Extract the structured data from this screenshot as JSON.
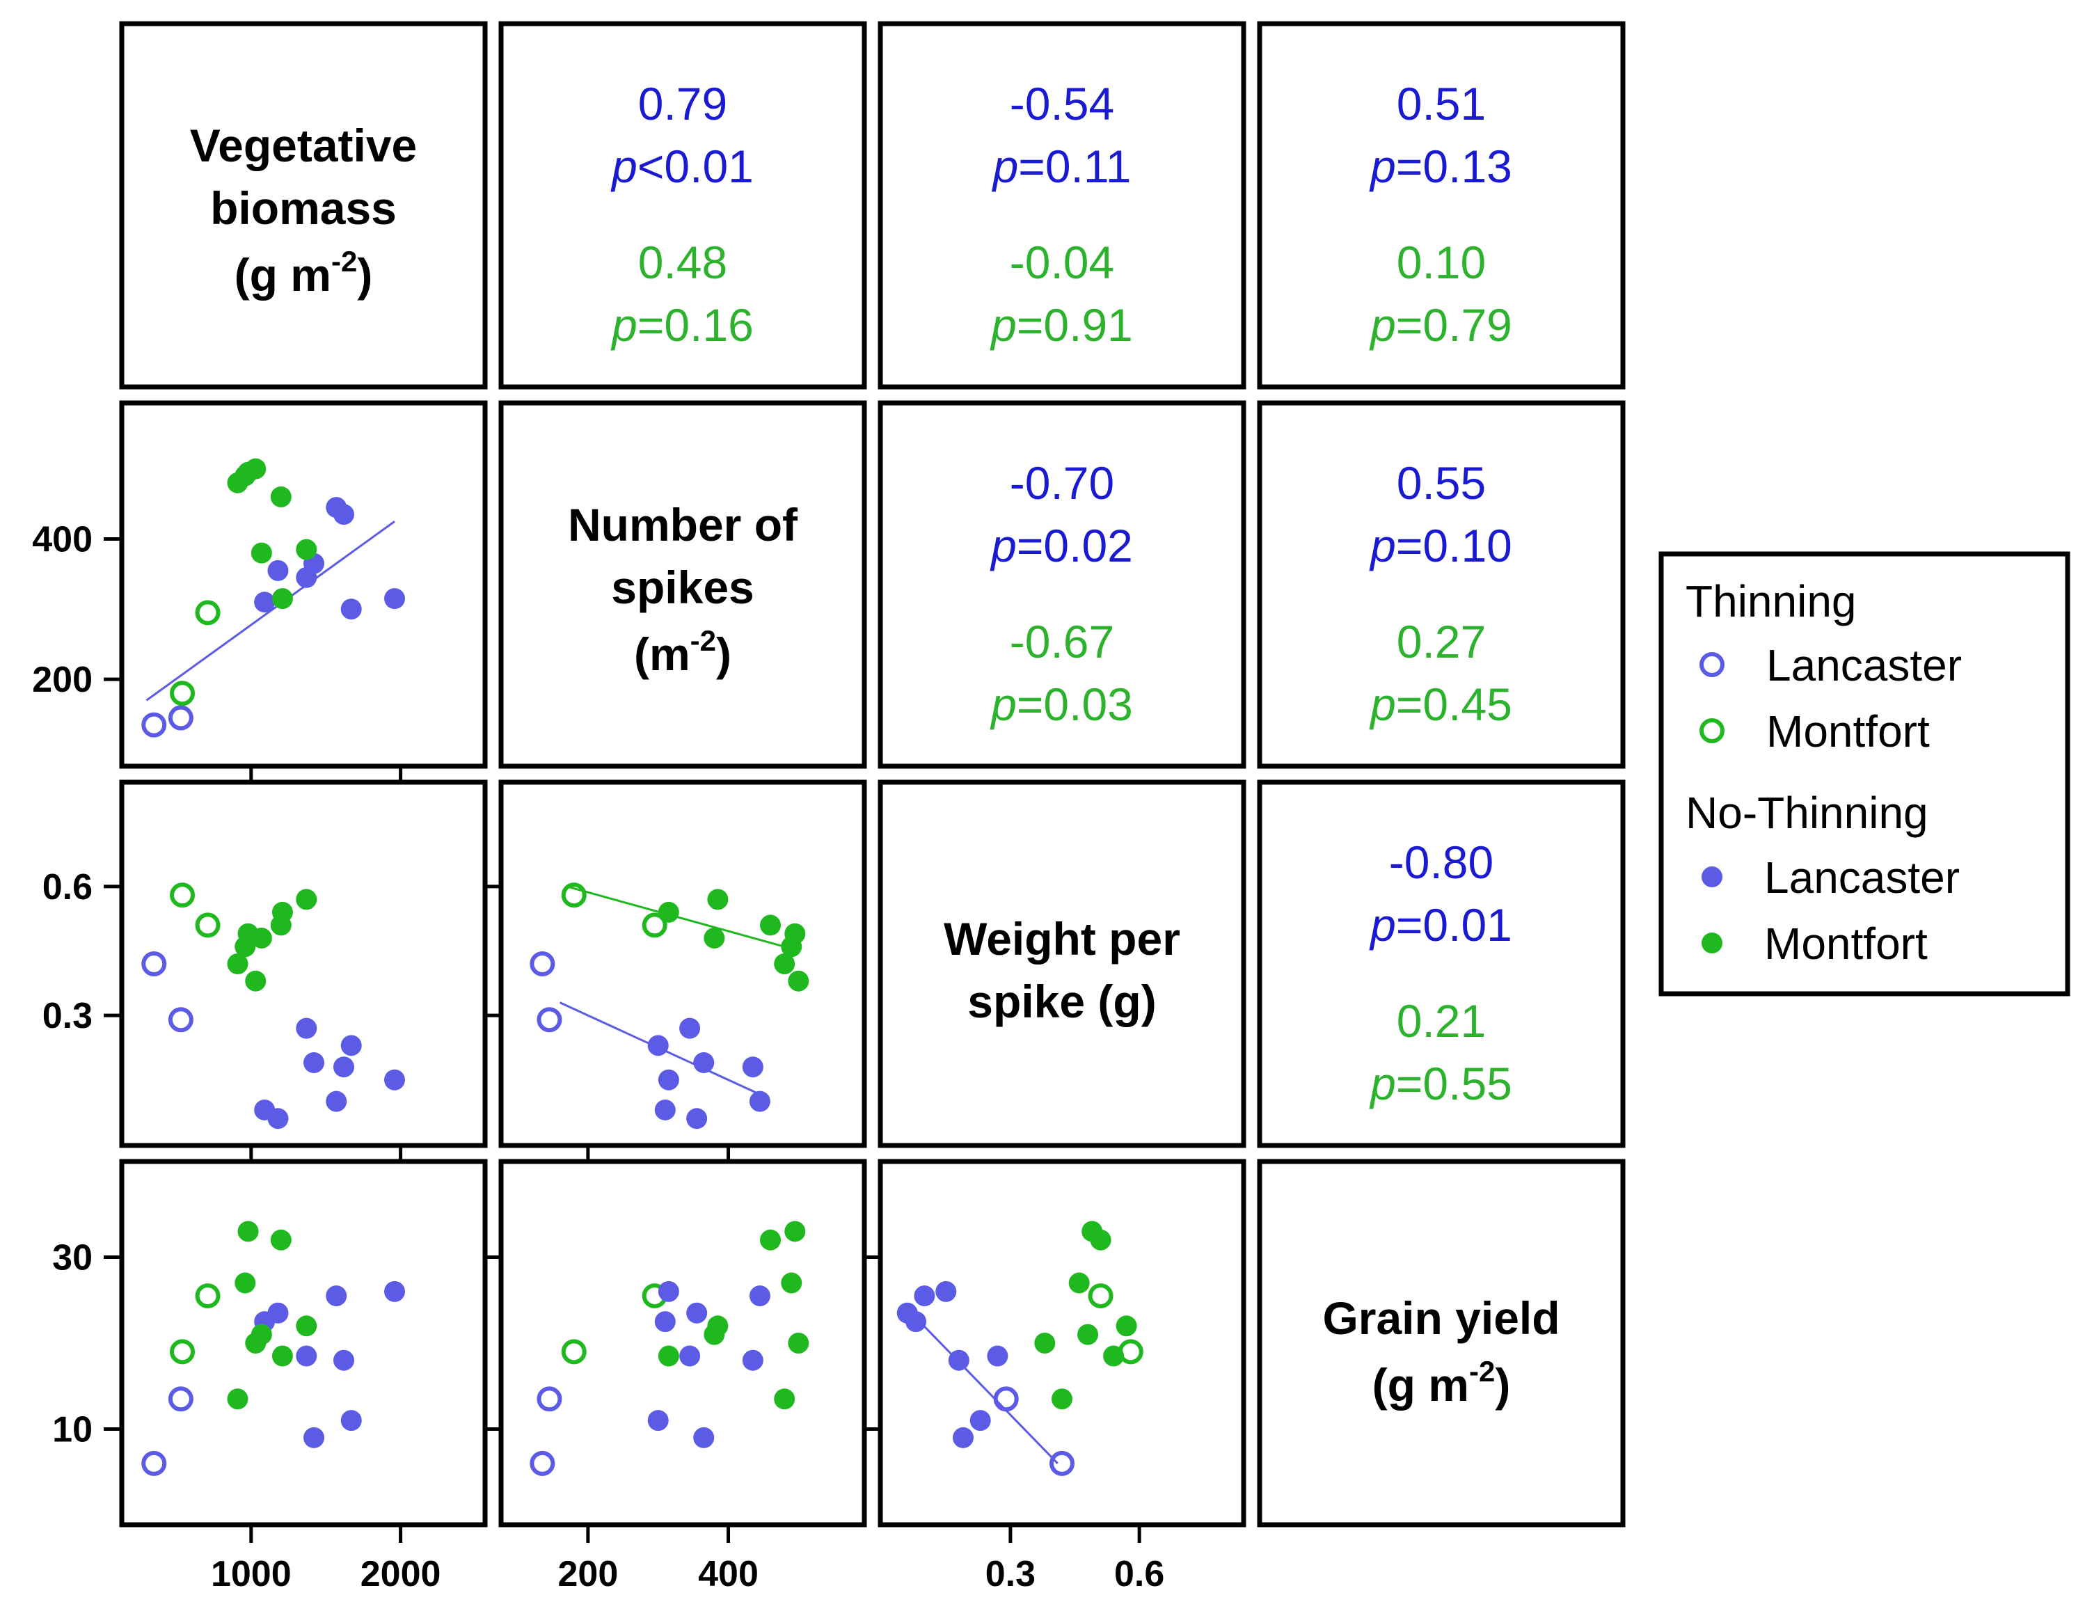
{
  "colors": {
    "lancaster": "#5b5be6",
    "montfort": "#1fb81f",
    "blue_text": "#1a1ad0",
    "green_text": "#2db22d"
  },
  "diagonal": {
    "veg": [
      "Vegetative",
      "biomass",
      "(g m",
      "-2",
      ")"
    ],
    "spk": [
      "Number of",
      "spikes",
      "(m",
      "-2",
      ")"
    ],
    "wps": [
      "Weight per",
      "spike (g)"
    ],
    "gy": [
      "Grain yield",
      "(g m",
      "-2",
      ")"
    ]
  },
  "correlations": {
    "veg_spk": {
      "lan_r": "0.79",
      "lan_p": "p",
      "lan_pv": "<0.01",
      "mon_r": "0.48",
      "mon_p": "p",
      "mon_pv": "=0.16"
    },
    "veg_wps": {
      "lan_r": "-0.54",
      "lan_p": "p",
      "lan_pv": "=0.11",
      "mon_r": "-0.04",
      "mon_p": "p",
      "mon_pv": "=0.91"
    },
    "veg_gy": {
      "lan_r": "0.51",
      "lan_p": "p",
      "lan_pv": "=0.13",
      "mon_r": "0.10",
      "mon_p": "p",
      "mon_pv": "=0.79"
    },
    "spk_wps": {
      "lan_r": "-0.70",
      "lan_p": "p",
      "lan_pv": "=0.02",
      "mon_r": "-0.67",
      "mon_p": "p",
      "mon_pv": "=0.03"
    },
    "spk_gy": {
      "lan_r": "0.55",
      "lan_p": "p",
      "lan_pv": "=0.10",
      "mon_r": "0.27",
      "mon_p": "p",
      "mon_pv": "=0.45"
    },
    "wps_gy": {
      "lan_r": "-0.80",
      "lan_p": "p",
      "lan_pv": "=0.01",
      "mon_r": "0.21",
      "mon_p": "p",
      "mon_pv": "=0.55"
    }
  },
  "legend": {
    "thinning": "Thinning",
    "no_thinning": "No-Thinning",
    "lancaster": "Lancaster",
    "montfort": "Montfort"
  },
  "chart_data": {
    "type": "scatter",
    "variables": [
      "veg",
      "spk",
      "wps",
      "gy"
    ],
    "axes": {
      "veg": {
        "range": [
          200,
          2500
        ],
        "ticks": [
          1000,
          2000
        ],
        "tick_labels": [
          "1000",
          "2000"
        ]
      },
      "spk": {
        "range": [
          90,
          580
        ],
        "ticks": [
          200,
          400
        ],
        "tick_labels": [
          "200",
          "400"
        ]
      },
      "wps": {
        "range": [
          0.02,
          0.82
        ],
        "ticks": [
          0.3,
          0.6
        ],
        "tick_labels": [
          "0.3",
          "0.6"
        ]
      },
      "gy": {
        "range": [
          0,
          40
        ],
        "ticks": [
          10,
          30
        ],
        "tick_labels": [
          "10",
          "30"
        ]
      }
    },
    "series": [
      {
        "name": "Thinning Lancaster",
        "site": "lancaster",
        "filled": false,
        "points": [
          {
            "veg": 350,
            "spk": 135,
            "wps": 0.42,
            "gy": 6
          },
          {
            "veg": 530,
            "spk": 145,
            "wps": 0.29,
            "gy": 13.5
          }
        ]
      },
      {
        "name": "Thinning Montfort",
        "site": "montfort",
        "filled": false,
        "points": [
          {
            "veg": 540,
            "spk": 180,
            "wps": 0.58,
            "gy": 19
          },
          {
            "veg": 710,
            "spk": 295,
            "wps": 0.51,
            "gy": 25.5
          }
        ]
      },
      {
        "name": "No-Thinning Lancaster",
        "site": "lancaster",
        "filled": true,
        "points": [
          {
            "veg": 1570,
            "spk": 445,
            "wps": 0.1,
            "gy": 25.5
          },
          {
            "veg": 1620,
            "spk": 435,
            "wps": 0.18,
            "gy": 18
          },
          {
            "veg": 1420,
            "spk": 365,
            "wps": 0.19,
            "gy": 9
          },
          {
            "veg": 1370,
            "spk": 345,
            "wps": 0.27,
            "gy": 18.5
          },
          {
            "veg": 1180,
            "spk": 355,
            "wps": 0.06,
            "gy": 23.5
          },
          {
            "veg": 1090,
            "spk": 310,
            "wps": 0.08,
            "gy": 22.5
          },
          {
            "veg": 1670,
            "spk": 300,
            "wps": 0.23,
            "gy": 11
          },
          {
            "veg": 1960,
            "spk": 315,
            "wps": 0.15,
            "gy": 26
          }
        ]
      },
      {
        "name": "No-Thinning Montfort",
        "site": "montfort",
        "filled": true,
        "points": [
          {
            "veg": 910,
            "spk": 480,
            "wps": 0.42,
            "gy": 13.5
          },
          {
            "veg": 960,
            "spk": 490,
            "wps": 0.46,
            "gy": 27
          },
          {
            "veg": 980,
            "spk": 495,
            "wps": 0.49,
            "gy": 33
          },
          {
            "veg": 1030,
            "spk": 500,
            "wps": 0.38,
            "gy": 20
          },
          {
            "veg": 1070,
            "spk": 380,
            "wps": 0.48,
            "gy": 21
          },
          {
            "veg": 1200,
            "spk": 460,
            "wps": 0.51,
            "gy": 32
          },
          {
            "veg": 1210,
            "spk": 315,
            "wps": 0.54,
            "gy": 18.5
          },
          {
            "veg": 1370,
            "spk": 385,
            "wps": 0.57,
            "gy": 22
          }
        ]
      }
    ],
    "regression_lines": [
      {
        "panel": "spk_vs_veg",
        "site": "lancaster",
        "x": "veg",
        "y": "spk",
        "from": [
          300,
          170
        ],
        "to": [
          1960,
          425
        ]
      },
      {
        "panel": "wps_vs_spk",
        "site": "montfort",
        "x": "spk",
        "y": "wps",
        "from": [
          170,
          0.6
        ],
        "to": [
          480,
          0.46
        ]
      },
      {
        "panel": "wps_vs_spk",
        "site": "lancaster",
        "x": "spk",
        "y": "wps",
        "from": [
          160,
          0.33
        ],
        "to": [
          440,
          0.12
        ]
      },
      {
        "panel": "gy_vs_wps",
        "site": "lancaster",
        "x": "wps",
        "y": "gy",
        "from": [
          0.05,
          24.5
        ],
        "to": [
          0.41,
          6
        ]
      }
    ]
  }
}
